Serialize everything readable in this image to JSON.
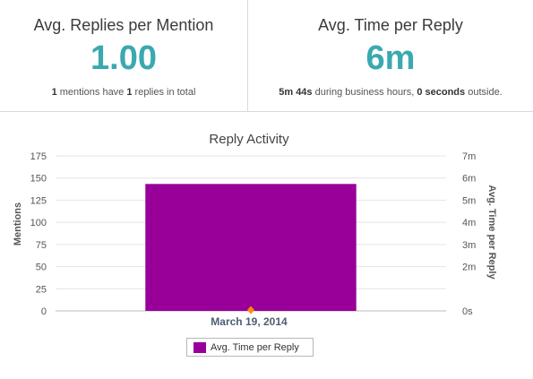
{
  "stats": {
    "replies_per_mention": {
      "title": "Avg. Replies per Mention",
      "value": "1.00",
      "note": {
        "mentions": "1",
        "t1": " mentions have ",
        "replies": "1",
        "t2": " replies in total"
      }
    },
    "time_per_reply": {
      "title": "Avg. Time per Reply",
      "value": "6m",
      "note": {
        "business": "5m 44s",
        "t1": " during business hours, ",
        "outside": "0 seconds",
        "t2": " outside."
      }
    }
  },
  "chart_data": {
    "type": "bar",
    "title": "Reply Activity",
    "categories": [
      "March 19, 2014"
    ],
    "series": [
      {
        "name": "Avg. Time per Reply",
        "axis": "right",
        "values": [
          "5m 44s"
        ],
        "values_seconds": [
          344
        ],
        "color": "#990099"
      },
      {
        "axis": "left",
        "values": [
          1
        ],
        "color": "#ff8c00",
        "marker": "diamond"
      }
    ],
    "y_left": {
      "label": "Mentions",
      "range": [
        0,
        175
      ],
      "ticks": [
        0,
        25,
        50,
        75,
        100,
        125,
        150,
        175
      ],
      "tick_labels": [
        "0",
        "25",
        "50",
        "75",
        "100",
        "125",
        "150",
        "175"
      ]
    },
    "y_right": {
      "label": "Avg. Time per Reply",
      "range_seconds": [
        0,
        420
      ],
      "ticks_seconds": [
        0,
        120,
        180,
        240,
        300,
        360,
        420
      ],
      "tick_labels": [
        "0s",
        "2m",
        "3m",
        "4m",
        "5m",
        "6m",
        "7m"
      ]
    },
    "grid": true,
    "legend": {
      "position": "bottom",
      "entries": [
        "Avg. Time per Reply"
      ]
    }
  }
}
